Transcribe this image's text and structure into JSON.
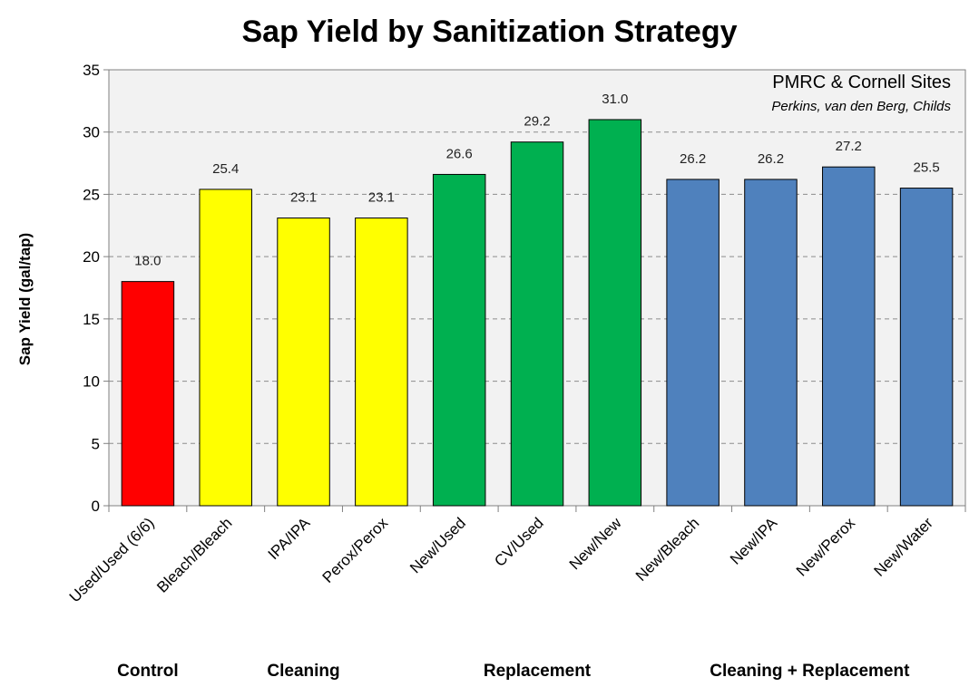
{
  "chart_data": {
    "type": "bar",
    "title": "Sap Yield by Sanitization Strategy",
    "ylabel": "Sap Yield (gal/tap)",
    "xlabel": "",
    "ylim": [
      0,
      35
    ],
    "yticks": [
      0,
      5,
      10,
      15,
      20,
      25,
      30,
      35
    ],
    "grid": true,
    "categories": [
      "Used/Used (6/6)",
      "Bleach/Bleach",
      "IPA/IPA",
      "Perox/Perox",
      "New/Used",
      "CV/Used",
      "New/New",
      "New/Bleach",
      "New/IPA",
      "New/Perox",
      "New/Water"
    ],
    "values": [
      18.0,
      25.4,
      23.1,
      23.1,
      26.6,
      29.2,
      31.0,
      26.2,
      26.2,
      27.2,
      25.5
    ],
    "value_labels": [
      "18.0",
      "25.4",
      "23.1",
      "23.1",
      "26.6",
      "29.2",
      "31.0",
      "26.2",
      "26.2",
      "27.2",
      "25.5"
    ],
    "bar_colors": [
      "#ff0000",
      "#ffff00",
      "#ffff00",
      "#ffff00",
      "#00b050",
      "#00b050",
      "#00b050",
      "#4f81bd",
      "#4f81bd",
      "#4f81bd",
      "#4f81bd"
    ],
    "groups": [
      {
        "label": "Control",
        "start": 0,
        "end": 0
      },
      {
        "label": "Cleaning",
        "start": 1,
        "end": 3
      },
      {
        "label": "Replacement",
        "start": 4,
        "end": 6
      },
      {
        "label": "Cleaning + Replacement",
        "start": 7,
        "end": 10
      }
    ],
    "annotations": [
      "PMRC & Cornell Sites",
      "Perkins, van den Berg, Childs"
    ]
  }
}
